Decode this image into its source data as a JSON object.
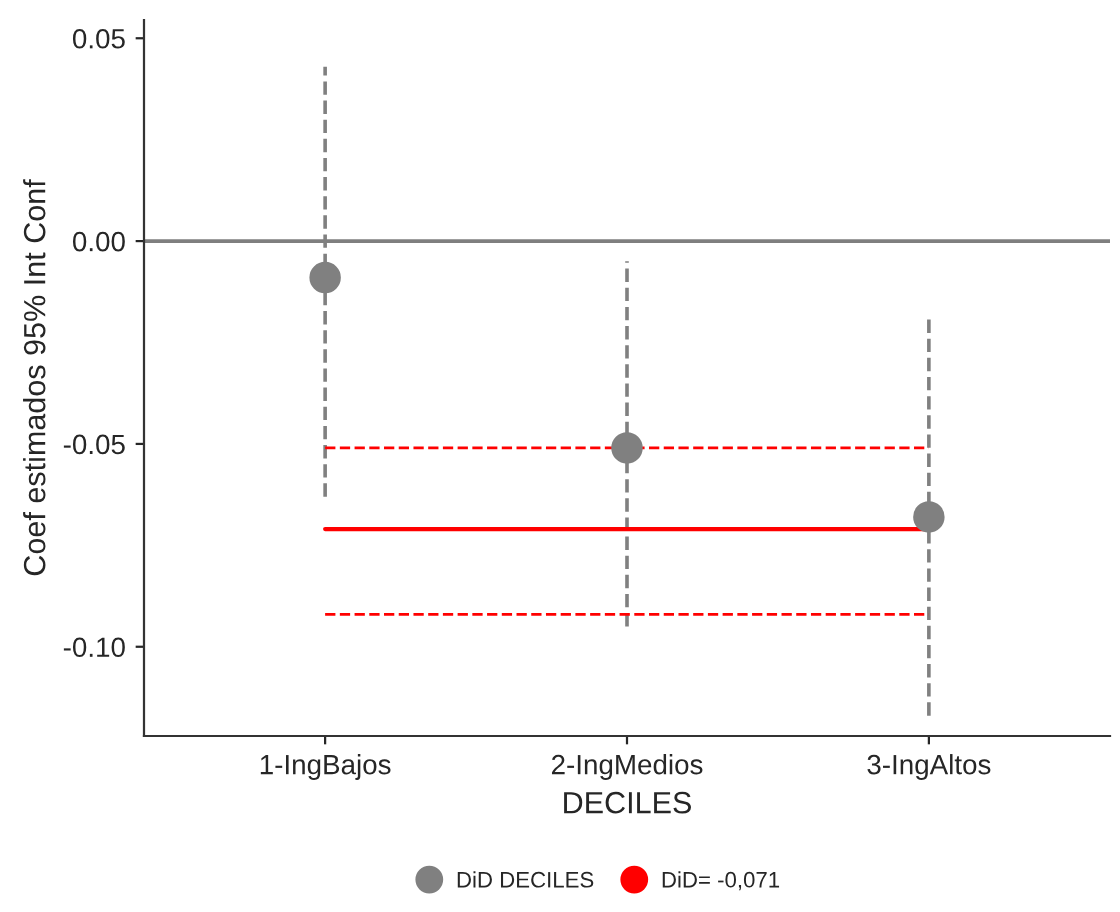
{
  "chart_data": {
    "type": "scatter",
    "xlabel": "DECILES",
    "ylabel": "Coef estimados 95% Int Conf",
    "categories": [
      "1-IngBajos",
      "2-IngMedios",
      "3-IngAltos"
    ],
    "series": [
      {
        "name": "DiD DECILES",
        "marker": "circle",
        "color": "#808080",
        "values": [
          -0.009,
          -0.051,
          -0.068
        ],
        "errors": [
          [
            -0.063,
            0.043
          ],
          [
            -0.095,
            -0.005
          ],
          [
            -0.117,
            -0.018
          ]
        ]
      },
      {
        "name": "DiD= -0,071",
        "type": "line",
        "color": "#ff0000",
        "line_style": "solid",
        "values": [
          -0.071,
          -0.071,
          -0.071
        ]
      },
      {
        "type": "line",
        "color": "#ff0000",
        "line_style": "dashed",
        "values": [
          -0.051,
          -0.051,
          -0.051
        ]
      },
      {
        "type": "line",
        "color": "#ff0000",
        "line_style": "dashed",
        "values": [
          -0.092,
          -0.092,
          -0.092
        ]
      }
    ],
    "ylim": [
      -0.122,
      0.0545
    ],
    "yticks": [
      {
        "value": -0.1,
        "label": "-0.10"
      },
      {
        "value": -0.05,
        "label": "-0.05"
      },
      {
        "value": 0.0,
        "label": "0.00"
      },
      {
        "value": 0.05,
        "label": "0.05"
      }
    ],
    "ref_lines": [
      {
        "axis": "y",
        "value": 0.0,
        "color": "#7f7f7f",
        "line_style": "solid"
      }
    ],
    "grid": false,
    "legend": "bottom"
  }
}
